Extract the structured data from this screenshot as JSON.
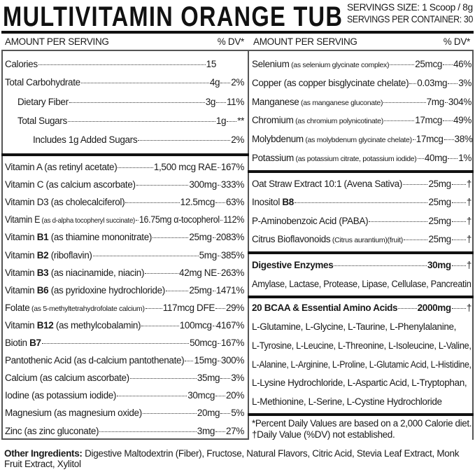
{
  "title": "MULTIVITAMIN ORANGE TUB",
  "serving_size": "SERVINGS SIZE: 1 Scoop / 8g",
  "servings_per_container": "SERVINGS PER CONTAINER: 30",
  "left_header": {
    "amount": "AMOUNT PER SERVING",
    "dv": "% DV*"
  },
  "right_header": {
    "amount": "AMOUNT PER SERVING",
    "dv": "% DV*"
  },
  "nutrition": [
    {
      "name": "Calories",
      "amount": "15",
      "dv": ""
    },
    {
      "name": "Total Carbohydrate",
      "amount": "4g",
      "dv": "2%"
    },
    {
      "name": "Dietary Fiber",
      "amount": "3g",
      "dv": "11%"
    },
    {
      "name": "Total Sugars",
      "amount": "1g",
      "dv": "**"
    },
    {
      "name": "Includes 1g Added Sugars",
      "amount": "",
      "dv": "2%"
    }
  ],
  "vitamins": [
    {
      "name": "Vitamin A",
      "bold": "",
      "desc": " (as retinyl acetate)",
      "small": false,
      "amount": "1,500 mcg RAE",
      "dv": "167%"
    },
    {
      "name": "Vitamin C",
      "bold": "",
      "desc": " (as calcium ascorbate)",
      "small": false,
      "amount": "300mg",
      "dv": "333%"
    },
    {
      "name": "Vitamin D3",
      "bold": "",
      "desc": " (as cholecalciferol)",
      "small": false,
      "amount": "12.5mcg",
      "dv": "63%"
    },
    {
      "name": "Vitamin E",
      "bold": "",
      "desc": " (as d-alpha tocopheryl succinate)",
      "small": true,
      "amount": "16.75mg α-tocopherol",
      "dv": "112%"
    },
    {
      "name": "Vitamin ",
      "bold": "B1",
      "desc": " (as thiamine mononitrate)",
      "small": false,
      "amount": "25mg",
      "dv": "2083%"
    },
    {
      "name": "Vitamin ",
      "bold": "B2",
      "desc": " (riboflavin)",
      "small": false,
      "amount": "5mg",
      "dv": "385%"
    },
    {
      "name": "Vitamin ",
      "bold": "B3",
      "desc": " (as niacinamide, niacin)",
      "small": false,
      "amount": "42mg NE",
      "dv": "263%"
    },
    {
      "name": "Vitamin ",
      "bold": "B6",
      "desc": " (as pyridoxine hydrochloride)",
      "small": false,
      "amount": "25mg",
      "dv": "1471%"
    },
    {
      "name": "Folate",
      "bold": "",
      "desc": " (as 5-methyltetrahydrofolate calcium)",
      "small": true,
      "amount": "117mcg DFE",
      "dv": "29%"
    },
    {
      "name": "Vitamin ",
      "bold": "B12",
      "desc": " (as methylcobalamin)",
      "small": false,
      "amount": "100mcg",
      "dv": "4167%"
    },
    {
      "name": "Biotin ",
      "bold": "B7",
      "desc": "",
      "small": false,
      "amount": "50mcg",
      "dv": "167%"
    },
    {
      "name": "Pantothenic Acid",
      "bold": "",
      "desc": " (as d-calcium pantothenate)",
      "small": false,
      "amount": "15mg",
      "dv": "300%"
    },
    {
      "name": "Calcium",
      "bold": "",
      "desc": " (as calcium ascorbate)",
      "small": false,
      "amount": "35mg",
      "dv": "3%"
    },
    {
      "name": "Iodine",
      "bold": "",
      "desc": " (as potassium iodide)",
      "small": false,
      "amount": "30mcg",
      "dv": "20%"
    },
    {
      "name": "Magnesium",
      "bold": "",
      "desc": " (as magnesium oxide)",
      "small": false,
      "amount": "20mg",
      "dv": "5%"
    },
    {
      "name": "Zinc",
      "bold": "",
      "desc": " (as zinc gluconate)",
      "small": false,
      "amount": "3mg",
      "dv": "27%"
    }
  ],
  "minerals": [
    {
      "name": "Selenium",
      "bold": "",
      "desc": " (as selenium glycinate complex)",
      "small": true,
      "amount": "25mcg",
      "dv": "46%"
    },
    {
      "name": "Copper",
      "bold": "",
      "desc": " (as copper bisglycinate chelate)",
      "small": false,
      "amount": "0.03mg",
      "dv": "3%"
    },
    {
      "name": "Manganese",
      "bold": "",
      "desc": " (as manganese gluconate)",
      "small": true,
      "amount": "7mg",
      "dv": "304%"
    },
    {
      "name": "Chromium",
      "bold": "",
      "desc": " (as chromium polynicotinate)",
      "small": true,
      "amount": "17mcg",
      "dv": "49%"
    },
    {
      "name": "Molybdenum",
      "bold": "",
      "desc": " (as molybdenum glycinate chelate)",
      "small": true,
      "amount": "17mcg",
      "dv": "38%"
    },
    {
      "name": "Potassium",
      "bold": "",
      "desc": " (as potassium citrate, potassium iodide)",
      "small": true,
      "amount": "40mg",
      "dv": "1%"
    }
  ],
  "extracts": [
    {
      "name": "Oat Straw Extract 10:1 (Avena Sativa)",
      "bold": "",
      "desc": "",
      "small": false,
      "amount": "25mg",
      "dv": "†"
    },
    {
      "name": "Inositol ",
      "bold": "B8",
      "desc": "",
      "small": false,
      "amount": "25mg",
      "dv": "†"
    },
    {
      "name": "P-Aminobenzoic Acid (PABA)",
      "bold": "",
      "desc": "",
      "small": false,
      "amount": "25mg",
      "dv": "†"
    },
    {
      "name": "Citrus Bioflavonoids",
      "bold": "",
      "desc": " (Citrus aurantium)(fruit)",
      "small": true,
      "amount": "25mg",
      "dv": "†"
    }
  ],
  "enzymes": {
    "name": "Digestive Enzymes",
    "amount": "30mg",
    "dv": "†",
    "list": "Amylase, Lactase, Protease, Lipase, Cellulase, Pancreatin"
  },
  "amino": {
    "name": "20 BCAA & Essential Amino Acids",
    "amount": "2000mg",
    "dv": "†",
    "lines": [
      "L-Glutamine, L-Glycine, L-Taurine, L-Phenylalanine,",
      "L-Tyrosine, L-Leucine, L-Threonine, L-Isoleucine,  L-Valine,",
      "L-Alanine, L-Arginine, L-Proline, L-Glutamic Acid, L-Histidine,",
      "L-Lysine Hydrochloride, L-Aspartic Acid, L-Tryptophan,",
      "L-Methionine, L-Serine, L-Cystine Hydrochloride"
    ]
  },
  "footnotes": [
    "*Percent Daily Values are based on a 2,000 Calorie diet.",
    "†Daily Value (%DV) not established."
  ],
  "other_ingredients": {
    "label": "Other Ingredients:",
    "text": " Digestive Maltodextrin (Fiber), Fructose, Natural Flavors, Citric Acid, Stevia Leaf Extract, Monk Fruit Extract, Xylitol"
  }
}
